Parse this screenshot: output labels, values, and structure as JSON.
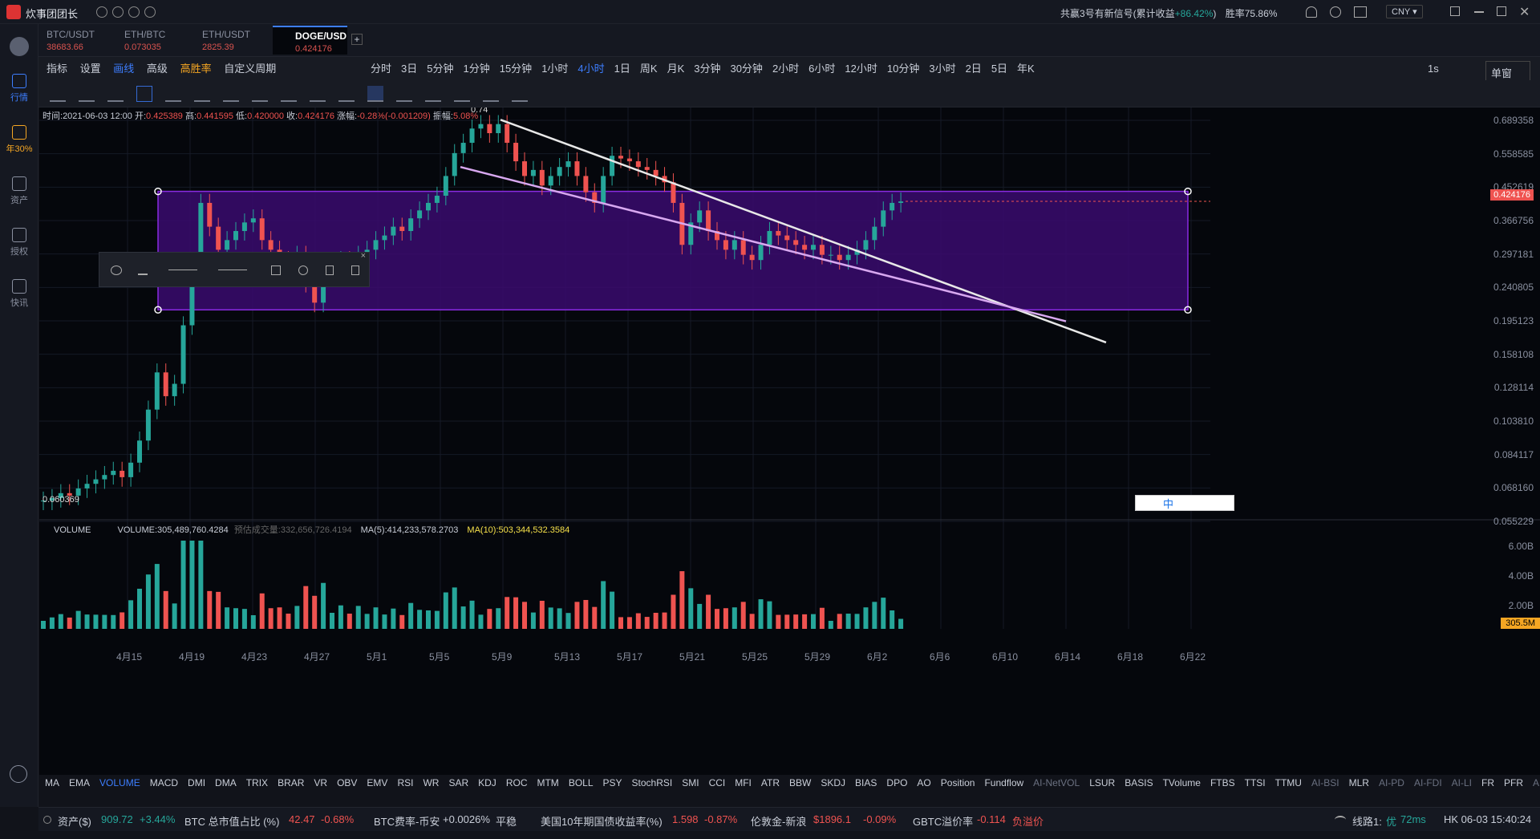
{
  "titlebar": {
    "app_name": "炊事团团长",
    "signal_text": "共赢3号有新信号(累计收益",
    "signal_gain": "+86.42%",
    "signal_close": ")",
    "win_rate": "胜率75.86%",
    "currency": "CNY"
  },
  "sidebar": [
    {
      "label": "行情",
      "icon": "chart-icon"
    },
    {
      "label": "年30%",
      "icon": "export-icon"
    },
    {
      "label": "资产",
      "icon": "wallet-icon"
    },
    {
      "label": "授权",
      "icon": "key-icon"
    },
    {
      "label": "快讯",
      "icon": "news-icon"
    }
  ],
  "tabs": [
    {
      "symbol": "BTC/USDT",
      "price": "38683.66"
    },
    {
      "symbol": "ETH/BTC",
      "price": "0.073035"
    },
    {
      "symbol": "ETH/USDT",
      "price": "2825.39"
    },
    {
      "symbol": "DOGE/USD",
      "price": "0.424176"
    }
  ],
  "menu": {
    "items": [
      "指标",
      "设置",
      "画线",
      "高级",
      "高胜率",
      "自定义周期"
    ],
    "periods": [
      "分时",
      "3日",
      "5分钟",
      "1分钟",
      "15分钟",
      "1小时",
      "4小时",
      "1日",
      "周K",
      "月K",
      "3分钟",
      "30分钟",
      "2小时",
      "6小时",
      "12小时",
      "10分钟",
      "3小时",
      "2日",
      "5日",
      "年K"
    ],
    "active_period": "4小时",
    "right_time": "1s",
    "window_mode": "单窗口"
  },
  "ohlc": {
    "time_label": "时间:",
    "time": "2021-06-03 12:00",
    "open_label": "开:",
    "open": "0.425389",
    "high_label": "高:",
    "high": "0.441595",
    "low_label": "低:",
    "low": "0.420000",
    "close_label": "收:",
    "close": "0.424176",
    "change_label": "涨幅:",
    "change": "-0.28%(-0.001209)",
    "amp_label": "振幅:",
    "amp": "5.08%"
  },
  "chart_data": {
    "type": "candlestick",
    "y_ticks": [
      "0.689358",
      "0.558585",
      "0.452619",
      "0.366756",
      "0.297181",
      "0.240805",
      "0.195123",
      "0.158108",
      "0.128114",
      "0.103810",
      "0.084117",
      "0.068160",
      "0.055229"
    ],
    "x_ticks": [
      "4月15",
      "4月19",
      "4月23",
      "4月27",
      "5月1",
      "5月5",
      "5月9",
      "5月13",
      "5月17",
      "5月21",
      "5月25",
      "5月29",
      "6月2",
      "6月6",
      "6月10",
      "6月14",
      "6月18",
      "6月22"
    ],
    "last_price": "0.424176",
    "peak_label": "0.74",
    "low_label": "0.060369",
    "close_series": [
      0.061,
      0.062,
      0.064,
      0.063,
      0.066,
      0.068,
      0.07,
      0.072,
      0.074,
      0.071,
      0.078,
      0.09,
      0.11,
      0.14,
      0.12,
      0.13,
      0.19,
      0.28,
      0.42,
      0.36,
      0.31,
      0.33,
      0.35,
      0.37,
      0.38,
      0.33,
      0.31,
      0.29,
      0.28,
      0.3,
      0.25,
      0.22,
      0.26,
      0.27,
      0.29,
      0.28,
      0.3,
      0.31,
      0.33,
      0.34,
      0.36,
      0.35,
      0.38,
      0.4,
      0.42,
      0.44,
      0.5,
      0.58,
      0.62,
      0.68,
      0.7,
      0.66,
      0.7,
      0.62,
      0.55,
      0.5,
      0.52,
      0.47,
      0.5,
      0.53,
      0.55,
      0.5,
      0.45,
      0.42,
      0.5,
      0.57,
      0.56,
      0.55,
      0.53,
      0.52,
      0.5,
      0.48,
      0.42,
      0.32,
      0.37,
      0.4,
      0.35,
      0.33,
      0.31,
      0.33,
      0.3,
      0.29,
      0.32,
      0.35,
      0.34,
      0.33,
      0.32,
      0.31,
      0.32,
      0.3,
      0.3,
      0.29,
      0.3,
      0.31,
      0.33,
      0.36,
      0.4,
      0.42,
      0.424
    ]
  },
  "volume": {
    "title": "VOLUME",
    "value_label": "VOLUME:",
    "value": "305,489,760.4284",
    "est_label": "预估成交量:",
    "est": "332,656,726.4194",
    "ma5_label": "MA(5):",
    "ma5": "414,233,578.2703",
    "ma10_label": "MA(10):",
    "ma10": "503,344,532.3584",
    "y_ticks": [
      "6.00B",
      "4.00B",
      "2.00B"
    ],
    "last": "305.5M"
  },
  "indicators": [
    "MA",
    "EMA",
    "VOLUME",
    "MACD",
    "DMI",
    "DMA",
    "TRIX",
    "BRAR",
    "VR",
    "OBV",
    "EMV",
    "RSI",
    "WR",
    "SAR",
    "KDJ",
    "ROC",
    "MTM",
    "BOLL",
    "PSY",
    "StochRSI",
    "SMI",
    "CCI",
    "MFI",
    "ATR",
    "BBW",
    "SKDJ",
    "BIAS",
    "DPO",
    "AO",
    "Position",
    "Fundflow",
    "AI-NetVOL",
    "LSUR",
    "BASIS",
    "TVolume",
    "FTBS",
    "TTSI",
    "TTMU",
    "AI-BSI",
    "MLR",
    "AI-PD",
    "AI-FDI",
    "AI-LI",
    "FR",
    "PFR",
    "AI-BST"
  ],
  "status": {
    "asset_label": "资产($)",
    "asset": "909.72",
    "asset_chg": "+3.44%",
    "btc_dom_label": "BTC 总市值占比 (%)",
    "btc_dom": "42.47",
    "btc_dom_chg": "-0.68%",
    "fee_label": "BTC费率-币安",
    "fee": "+0.0026%",
    "fee_state": "平稳",
    "bond_label": "美国10年期国债收益率(%)",
    "bond": "1.598",
    "bond_chg": "-0.87%",
    "gold_label": "伦敦金-新浪",
    "gold": "$1896.1",
    "gold_chg": "-0.09%",
    "gbtc_label": "GBTC溢价率",
    "gbtc": "-0.114",
    "gbtc_state": "负溢价",
    "line_label": "线路1:",
    "line_quality": "优",
    "latency": "72ms",
    "clock": "HK 06-03 15:40:24"
  },
  "colors": {
    "up": "#26a69a",
    "down": "#ef5350",
    "accent": "#3d7eff",
    "rect": "#8a2be2"
  }
}
